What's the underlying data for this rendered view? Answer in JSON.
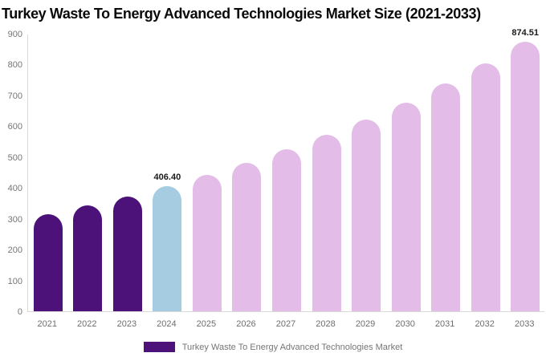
{
  "title": "Turkey Waste To Energy Advanced Technologies Market Size (2021-2033)",
  "chart_data": {
    "type": "bar",
    "title": "Turkey Waste To Energy Advanced Technologies Market Size (2021-2033)",
    "xlabel": "",
    "ylabel": "",
    "categories": [
      "2021",
      "2022",
      "2023",
      "2024",
      "2025",
      "2026",
      "2027",
      "2028",
      "2029",
      "2030",
      "2031",
      "2032",
      "2033"
    ],
    "values": [
      314.7,
      342.7,
      373.2,
      406.4,
      442.5,
      481.9,
      524.8,
      571.4,
      622.1,
      677.5,
      737.6,
      803.1,
      874.51
    ],
    "point_roles": [
      "historical",
      "historical",
      "historical",
      "base_year",
      "forecast",
      "forecast",
      "forecast",
      "forecast",
      "forecast",
      "forecast",
      "forecast",
      "forecast",
      "forecast"
    ],
    "palette": {
      "historical": "#4d1279",
      "base_year": "#a6cce2",
      "forecast": "#e3bde8"
    },
    "point_labels": {
      "2024": "406.40",
      "2033": "874.51"
    },
    "ylim": [
      0,
      900
    ],
    "yticks": [
      0,
      100,
      200,
      300,
      400,
      500,
      600,
      700,
      800,
      900
    ],
    "grid": false,
    "axis_color": "#d9d9d9",
    "legend": {
      "position": "bottom",
      "label": "Turkey Waste To Energy Advanced Technologies Market",
      "swatch_color": "#4d1279"
    }
  }
}
